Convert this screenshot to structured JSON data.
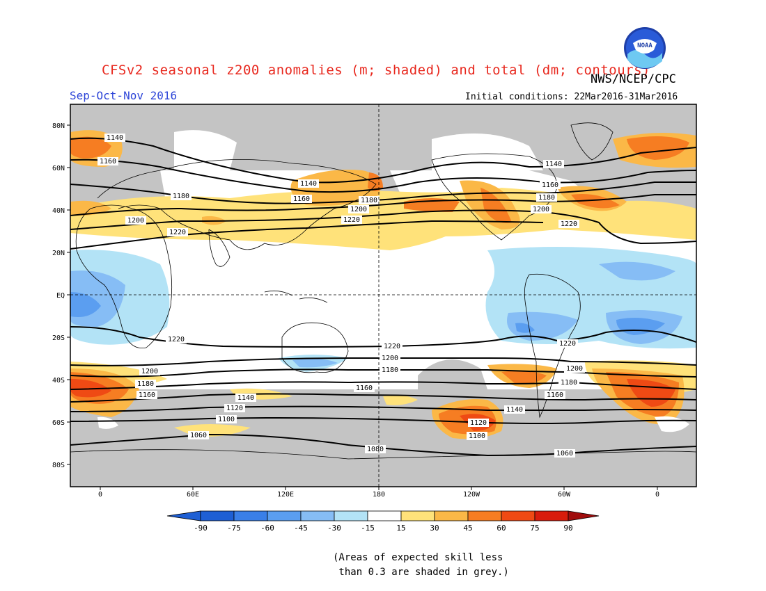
{
  "title": "CFSv2 seasonal z200 anomalies (m; shaded) and total (dm; contours)",
  "agency": "NWS/NCEP/CPC",
  "season": "Sep-Oct-Nov 2016",
  "initial_conditions": "Initial conditions: 22Mar2016-31Mar2016",
  "logo_text": "NOAA",
  "lat_ticks": [
    "80N",
    "60N",
    "40N",
    "20N",
    "EQ",
    "20S",
    "40S",
    "60S",
    "80S"
  ],
  "lon_ticks": [
    "0",
    "60E",
    "120E",
    "180",
    "120W",
    "60W",
    "0"
  ],
  "colorbar": {
    "labels": [
      "-90",
      "-75",
      "-60",
      "-45",
      "-30",
      "-15",
      "15",
      "30",
      "45",
      "60",
      "75",
      "90"
    ],
    "colors": [
      "#1e5fd4",
      "#3a7fe8",
      "#5b9ef0",
      "#86bdf5",
      "#b3e3f6",
      "#ffffff",
      "#ffe27a",
      "#fbb847",
      "#f67d22",
      "#ef4a14",
      "#d81c0c",
      "#a00d0d"
    ]
  },
  "contour_labels": [
    "1060",
    "1080",
    "1100",
    "1120",
    "1140",
    "1160",
    "1180",
    "1200",
    "1220"
  ],
  "note": "(Areas of expected skill less\n than 0.3 are shaded in grey.)"
}
